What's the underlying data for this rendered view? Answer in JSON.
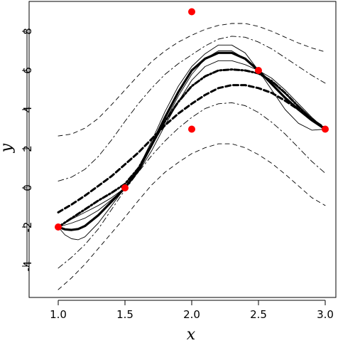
{
  "chart_data": {
    "type": "line",
    "xlabel": "x",
    "ylabel": "y",
    "xlim": [
      0.95,
      3.05
    ],
    "ylim": [
      -5.7,
      9.5
    ],
    "x_ticks": [
      1.0,
      1.5,
      2.0,
      2.5,
      3.0
    ],
    "x_tick_labels": [
      "1.0",
      "1.5",
      "2.0",
      "2.5",
      "3.0"
    ],
    "y_ticks": [
      -4,
      -2,
      0,
      2,
      4,
      6,
      8
    ],
    "y_tick_labels": [
      "-4",
      "-2",
      "0",
      "2",
      "4",
      "6",
      "8"
    ],
    "grid": false,
    "points": {
      "color": "#ff0000",
      "x": [
        1.0,
        1.5,
        2.0,
        2.0,
        2.5,
        3.0
      ],
      "y": [
        -2.0,
        0.0,
        9.0,
        3.0,
        6.0,
        3.0
      ]
    },
    "series": [
      {
        "style": "thick-solid",
        "x": [
          1.0,
          1.05,
          1.1,
          1.15,
          1.2,
          1.3,
          1.4,
          1.5,
          1.6,
          1.7,
          1.8,
          1.9,
          2.0,
          2.1,
          2.2,
          2.3,
          2.4,
          2.5,
          2.6,
          2.7,
          2.8,
          2.9,
          3.0
        ],
        "y": [
          -2.0,
          -2.12,
          -2.15,
          -2.1,
          -1.95,
          -1.4,
          -0.7,
          0.0,
          0.9,
          2.2,
          3.6,
          4.9,
          6.0,
          6.6,
          6.9,
          6.9,
          6.6,
          6.0,
          5.3,
          4.6,
          4.0,
          3.45,
          3.0
        ]
      },
      {
        "style": "thin-solid",
        "x": [
          1.0,
          1.05,
          1.1,
          1.15,
          1.2,
          1.3,
          1.4,
          1.5,
          1.6,
          1.7,
          1.8,
          1.9,
          2.0,
          2.1,
          2.2,
          2.3,
          2.4,
          2.5,
          2.6,
          2.7,
          2.8,
          2.9,
          3.0
        ],
        "y": [
          -2.0,
          -2.4,
          -2.6,
          -2.65,
          -2.5,
          -1.8,
          -0.9,
          0.0,
          1.0,
          2.4,
          3.9,
          5.2,
          6.2,
          6.85,
          7.3,
          7.3,
          6.9,
          6.0,
          5.0,
          4.0,
          3.3,
          2.95,
          3.0
        ]
      },
      {
        "style": "thin-solid",
        "x": [
          1.0,
          1.1,
          1.2,
          1.3,
          1.4,
          1.5,
          1.6,
          1.7,
          1.8,
          1.9,
          2.0,
          2.1,
          2.2,
          2.3,
          2.4,
          2.5,
          2.6,
          2.7,
          2.8,
          2.9,
          3.0
        ],
        "y": [
          -2.0,
          -1.6,
          -1.25,
          -0.9,
          -0.5,
          0.0,
          0.8,
          1.9,
          3.2,
          4.4,
          5.5,
          6.2,
          6.5,
          6.5,
          6.3,
          6.0,
          5.6,
          5.0,
          4.3,
          3.6,
          3.0
        ]
      },
      {
        "style": "thin-solid",
        "x": [
          1.0,
          1.1,
          1.2,
          1.3,
          1.4,
          1.5,
          1.6,
          1.7,
          1.8,
          1.9,
          2.0,
          2.1,
          2.2,
          2.3,
          2.4,
          2.5,
          2.6,
          2.7,
          2.8,
          2.9,
          3.0
        ],
        "y": [
          -2.0,
          -1.8,
          -1.55,
          -1.15,
          -0.6,
          0.0,
          0.9,
          2.1,
          3.4,
          4.7,
          5.8,
          6.6,
          7.0,
          7.0,
          6.6,
          6.0,
          5.4,
          4.8,
          4.2,
          3.55,
          3.0
        ]
      },
      {
        "style": "thick-dash-dot",
        "x": [
          1.0,
          1.1,
          1.2,
          1.3,
          1.4,
          1.5,
          1.6,
          1.7,
          1.8,
          1.9,
          2.0,
          2.1,
          2.2,
          2.3,
          2.4,
          2.5,
          2.6,
          2.7,
          2.8,
          2.9,
          3.0
        ],
        "y": [
          -2.0,
          -1.55,
          -1.1,
          -0.65,
          -0.25,
          0.2,
          1.0,
          2.2,
          3.4,
          4.4,
          5.2,
          5.7,
          6.0,
          6.05,
          6.0,
          5.85,
          5.45,
          4.85,
          4.15,
          3.5,
          3.0
        ]
      },
      {
        "style": "thick-dashed",
        "x": [
          1.0,
          1.1,
          1.2,
          1.3,
          1.4,
          1.5,
          1.6,
          1.7,
          1.8,
          1.9,
          2.0,
          2.1,
          2.2,
          2.3,
          2.4,
          2.5,
          2.6,
          2.7,
          2.8,
          2.9,
          3.0
        ],
        "y": [
          -1.25,
          -0.85,
          -0.4,
          0.1,
          0.6,
          1.2,
          1.8,
          2.5,
          3.2,
          3.8,
          4.3,
          4.75,
          5.1,
          5.25,
          5.25,
          5.1,
          4.85,
          4.45,
          4.0,
          3.5,
          3.05
        ]
      },
      {
        "style": "thin-dash-dot",
        "x": [
          1.0,
          1.1,
          1.2,
          1.3,
          1.4,
          1.5,
          1.6,
          1.7,
          1.8,
          1.9,
          2.0,
          2.1,
          2.2,
          2.3,
          2.4,
          2.5,
          2.6,
          2.7,
          2.8,
          2.9,
          3.0
        ],
        "y": [
          0.35,
          0.55,
          0.95,
          1.6,
          2.45,
          3.4,
          4.3,
          5.1,
          5.8,
          6.35,
          6.8,
          7.25,
          7.6,
          7.75,
          7.7,
          7.45,
          7.1,
          6.65,
          6.2,
          5.75,
          5.35
        ]
      },
      {
        "style": "thin-dashed",
        "x": [
          1.0,
          1.1,
          1.2,
          1.3,
          1.4,
          1.5,
          1.6,
          1.7,
          1.8,
          1.9,
          2.0,
          2.1,
          2.2,
          2.3,
          2.4,
          2.5,
          2.6,
          2.7,
          2.8,
          2.9,
          3.0
        ],
        "y": [
          2.65,
          2.75,
          3.05,
          3.55,
          4.25,
          5.0,
          5.75,
          6.45,
          7.0,
          7.45,
          7.8,
          8.1,
          8.3,
          8.4,
          8.4,
          8.25,
          8.0,
          7.7,
          7.4,
          7.15,
          6.95
        ]
      },
      {
        "style": "thin-dash-dot",
        "x": [
          1.0,
          1.1,
          1.2,
          1.3,
          1.4,
          1.5,
          1.6,
          1.7,
          1.8,
          1.9,
          2.0,
          2.1,
          2.2,
          2.3,
          2.4,
          2.5,
          2.6,
          2.7,
          2.8,
          2.9,
          3.0
        ],
        "y": [
          -4.1,
          -3.55,
          -2.9,
          -2.1,
          -1.1,
          -0.1,
          0.8,
          1.65,
          2.4,
          3.05,
          3.6,
          4.05,
          4.3,
          4.35,
          4.2,
          3.85,
          3.35,
          2.75,
          2.05,
          1.35,
          0.75
        ]
      },
      {
        "style": "thin-dashed",
        "x": [
          1.0,
          1.1,
          1.2,
          1.3,
          1.4,
          1.5,
          1.6,
          1.7,
          1.8,
          1.9,
          2.0,
          2.1,
          2.2,
          2.3,
          2.4,
          2.5,
          2.6,
          2.7,
          2.8,
          2.9,
          3.0
        ],
        "y": [
          -5.2,
          -4.6,
          -3.9,
          -3.1,
          -2.3,
          -1.5,
          -0.65,
          0.15,
          0.8,
          1.3,
          1.75,
          2.05,
          2.25,
          2.25,
          2.05,
          1.7,
          1.25,
          0.7,
          0.1,
          -0.5,
          -0.9
        ]
      }
    ]
  }
}
